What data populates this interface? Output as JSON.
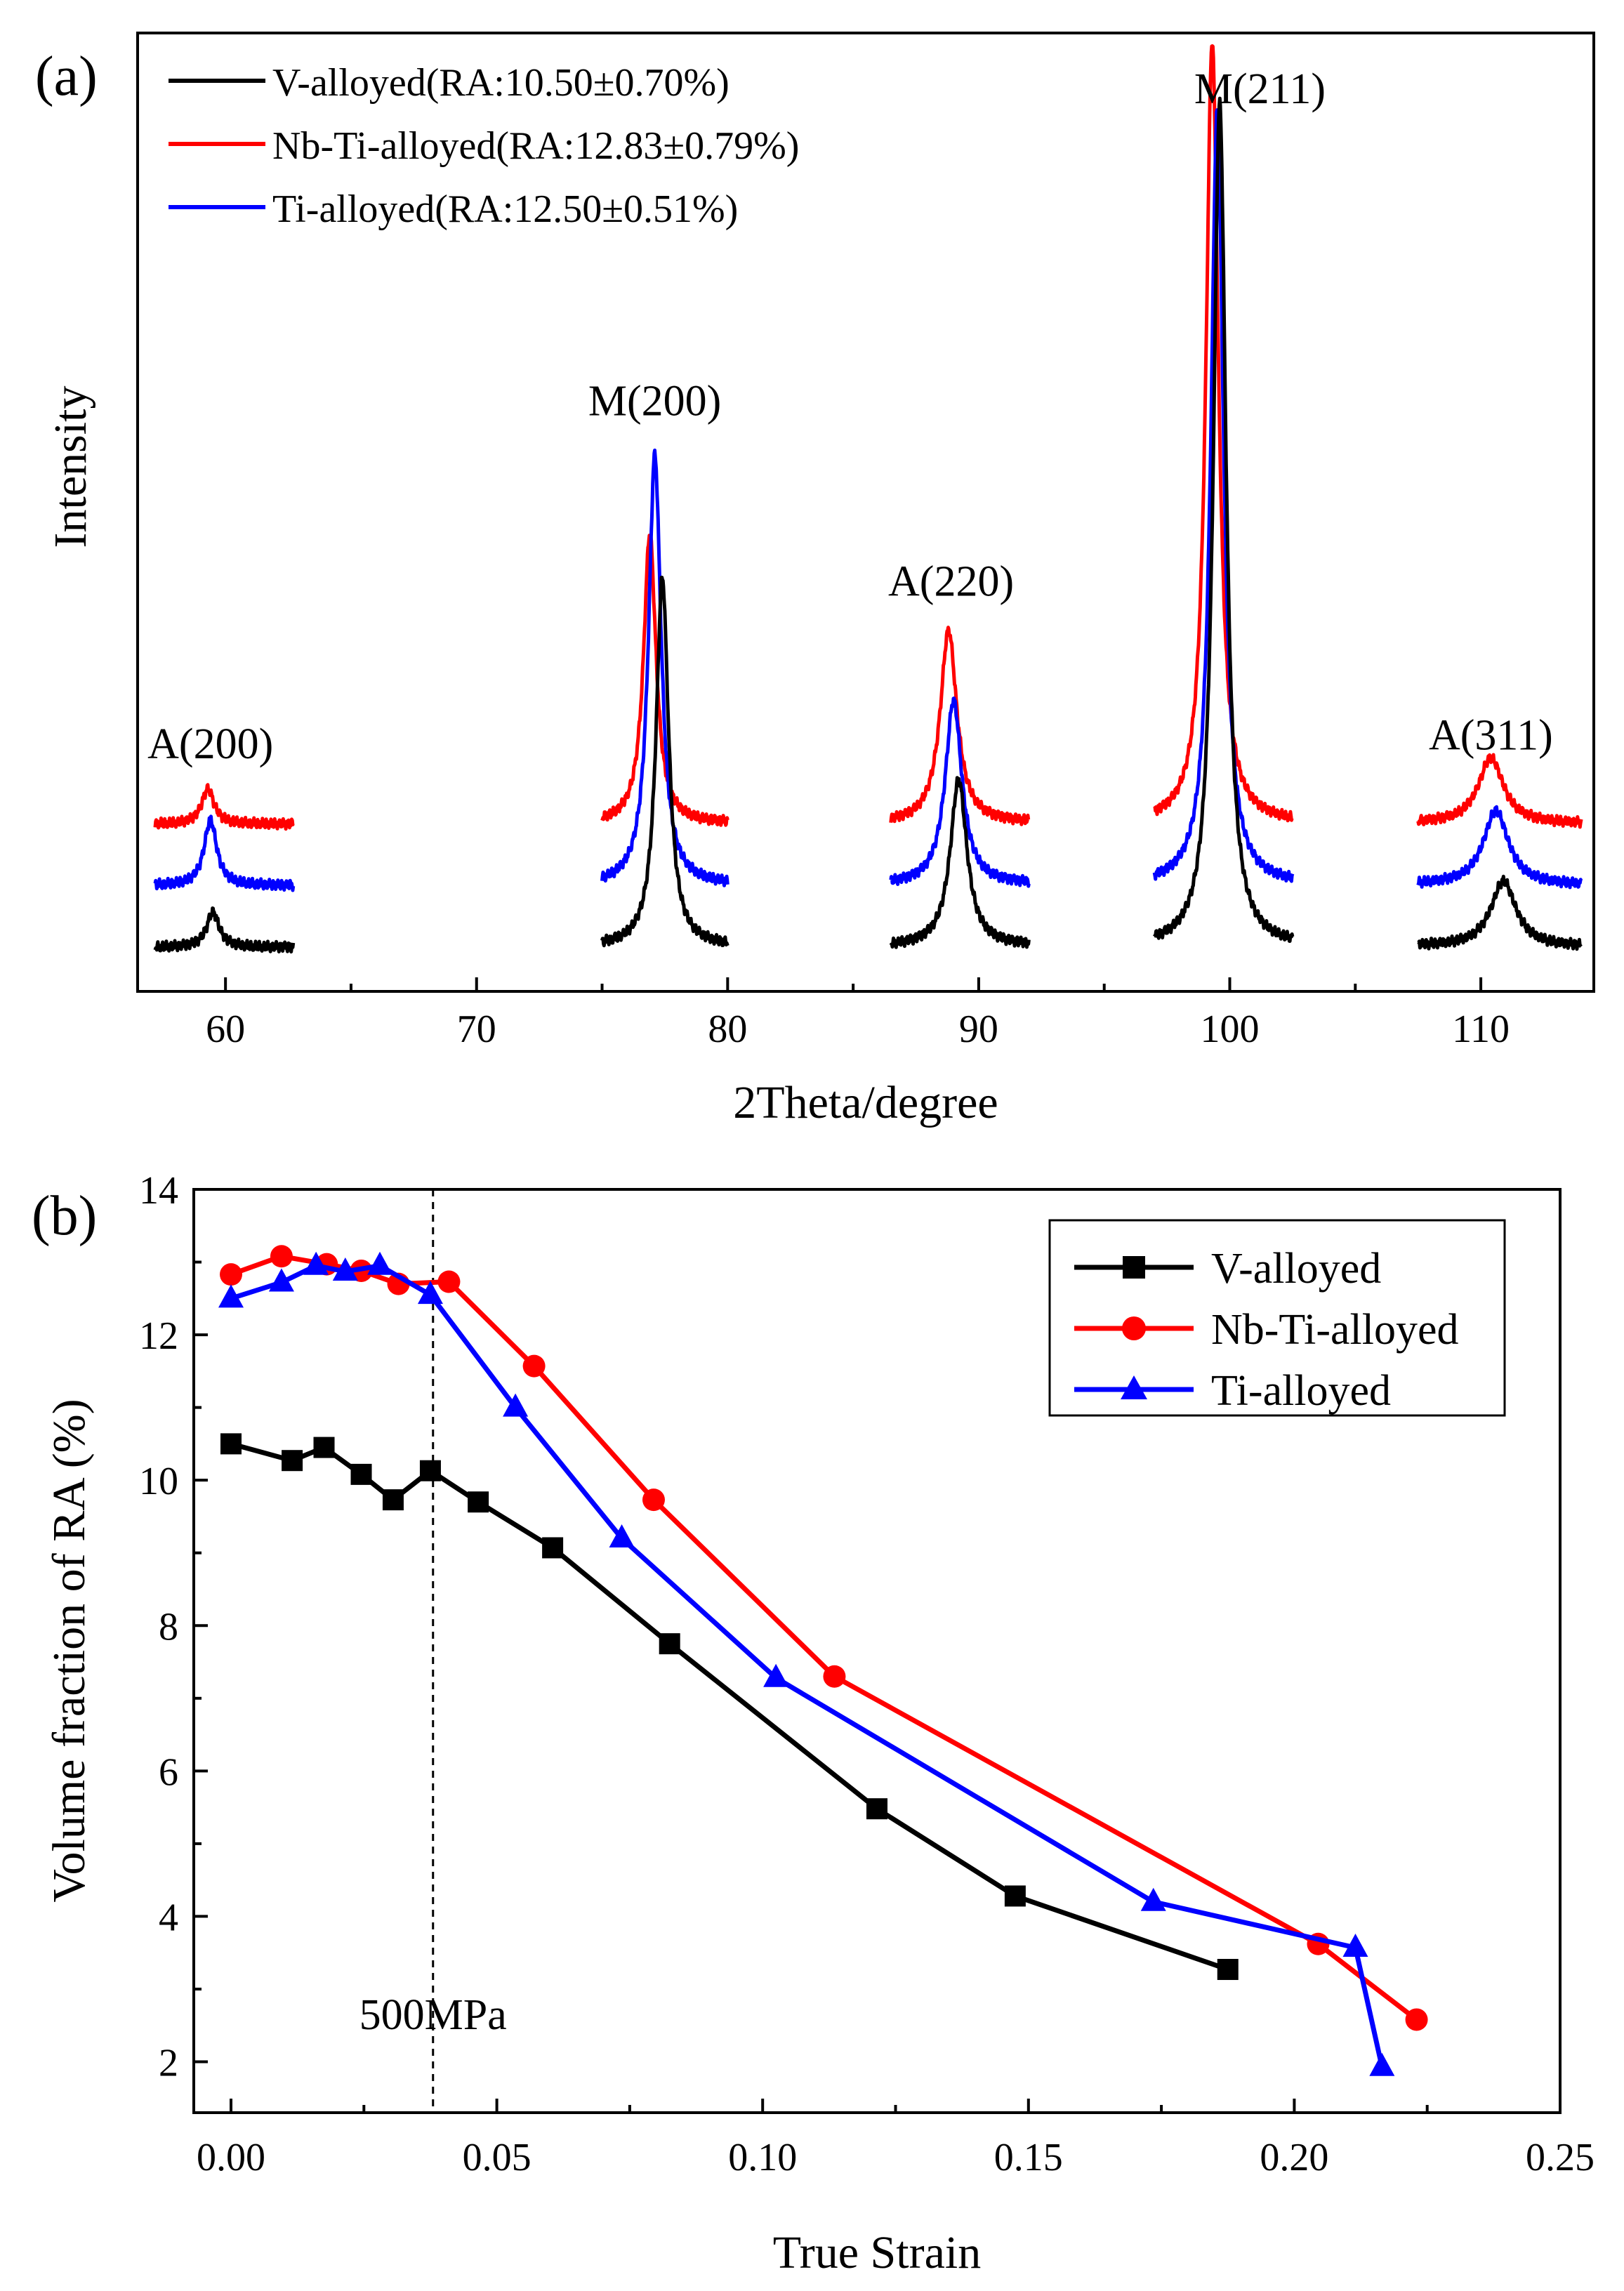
{
  "chart_data": [
    {
      "panel": "(a)",
      "type": "line",
      "title": "",
      "xlabel": "2Theta/degree",
      "ylabel": "Intensity",
      "xlim": [
        56.5,
        114.5
      ],
      "xticks": [
        60,
        70,
        80,
        90,
        100,
        110
      ],
      "ylim": [
        0,
        10.9
      ],
      "y_ticks_shown": false,
      "legend": "top-left",
      "colors": {
        "V-alloyed": "#000000",
        "Nb-Ti-alloyed": "#ff0000",
        "Ti-alloyed": "#0000ff"
      },
      "series": [
        {
          "name": "V-alloyed(RA:10.50±0.70%)",
          "key": "V-alloyed",
          "baseline": 0.5,
          "peaks": [
            {
              "x": 59.5,
              "h": 0.4,
              "w": 0.3
            },
            {
              "x": 77.4,
              "h": 4.2,
              "w": 0.3
            },
            {
              "x": 89.2,
              "h": 1.9,
              "w": 0.4
            },
            {
              "x": 99.6,
              "h": 9.6,
              "w": 0.3
            },
            {
              "x": 110.9,
              "h": 0.75,
              "w": 0.6
            }
          ]
        },
        {
          "name": "Nb-Ti-alloyed(RA:12.83±0.79%)",
          "key": "Nb-Ti-alloyed",
          "baseline": 1.9,
          "peaks": [
            {
              "x": 59.3,
              "h": 0.4,
              "w": 0.3
            },
            {
              "x": 76.9,
              "h": 3.3,
              "w": 0.3
            },
            {
              "x": 88.8,
              "h": 2.2,
              "w": 0.4
            },
            {
              "x": 99.3,
              "h": 8.9,
              "w": 0.3
            },
            {
              "x": 110.4,
              "h": 0.75,
              "w": 0.6
            }
          ]
        },
        {
          "name": "Ti-alloyed(RA:12.50±0.51%)",
          "key": "Ti-alloyed",
          "baseline": 1.2,
          "peaks": [
            {
              "x": 59.4,
              "h": 0.75,
              "w": 0.3
            },
            {
              "x": 77.1,
              "h": 4.9,
              "w": 0.3
            },
            {
              "x": 89.0,
              "h": 2.1,
              "w": 0.4
            },
            {
              "x": 99.5,
              "h": 8.8,
              "w": 0.3
            },
            {
              "x": 110.6,
              "h": 0.85,
              "w": 0.6
            }
          ]
        }
      ],
      "segments": [
        [
          57.2,
          62.7
        ],
        [
          75.0,
          80.0
        ],
        [
          86.5,
          92.0
        ],
        [
          97.0,
          102.5
        ],
        [
          107.5,
          114.0
        ]
      ],
      "annotations": [
        {
          "text": "A(200)",
          "x": 59.4,
          "y": 2.65
        },
        {
          "text": "M(200)",
          "x": 77.1,
          "y": 6.55
        },
        {
          "text": "A(220)",
          "x": 88.9,
          "y": 4.5
        },
        {
          "text": "M(211)",
          "x": 101.2,
          "y": 10.1
        },
        {
          "text": "A(311)",
          "x": 110.4,
          "y": 2.75
        }
      ]
    },
    {
      "panel": "(b)",
      "type": "line",
      "title": "",
      "xlabel": "True Strain",
      "ylabel": "Volume fraction of  RA (%)",
      "xlim": [
        -0.007,
        0.25
      ],
      "xticks": [
        0.0,
        0.05,
        0.1,
        0.15,
        0.2,
        0.25
      ],
      "xtick_labels": [
        "0.00",
        "0.05",
        "0.10",
        "0.15",
        "0.20",
        "0.25"
      ],
      "ylim": [
        1.3,
        14
      ],
      "yticks": [
        2,
        4,
        6,
        8,
        10,
        12,
        14
      ],
      "ytick_labels": [
        "2",
        "4",
        "6",
        "8",
        "10",
        "12",
        "14"
      ],
      "legend": "top-right",
      "series": [
        {
          "name": "V-alloyed",
          "color": "#000000",
          "marker": "square",
          "x": [
            0.0,
            0.0115,
            0.0175,
            0.0245,
            0.0305,
            0.0375,
            0.0465,
            0.0605,
            0.0825,
            0.1215,
            0.1475,
            0.1875
          ],
          "y": [
            10.5,
            10.27,
            10.45,
            10.08,
            9.73,
            10.13,
            9.7,
            9.07,
            7.75,
            5.48,
            4.28,
            3.27
          ]
        },
        {
          "name": "Nb-Ti-alloyed",
          "color": "#ff0000",
          "marker": "circle",
          "x": [
            0.0,
            0.0095,
            0.018,
            0.0245,
            0.0315,
            0.041,
            0.057,
            0.0795,
            0.1135,
            0.2045,
            0.223
          ],
          "y": [
            12.83,
            13.08,
            12.97,
            12.88,
            12.7,
            12.73,
            11.57,
            9.73,
            7.3,
            3.62,
            2.58
          ]
        },
        {
          "name": "Ti-alloyed",
          "color": "#0000ff",
          "marker": "triangle",
          "x": [
            0.0,
            0.0095,
            0.016,
            0.0215,
            0.028,
            0.0375,
            0.0535,
            0.0735,
            0.1025,
            0.1735,
            0.2115,
            0.2165
          ],
          "y": [
            12.5,
            12.72,
            12.95,
            12.87,
            12.95,
            12.55,
            11.0,
            9.2,
            7.28,
            4.2,
            3.57,
            1.93
          ]
        }
      ],
      "reference_line": {
        "x": 0.038,
        "style": "dashed",
        "label": "500MPa",
        "label_y": 2.45
      }
    }
  ]
}
